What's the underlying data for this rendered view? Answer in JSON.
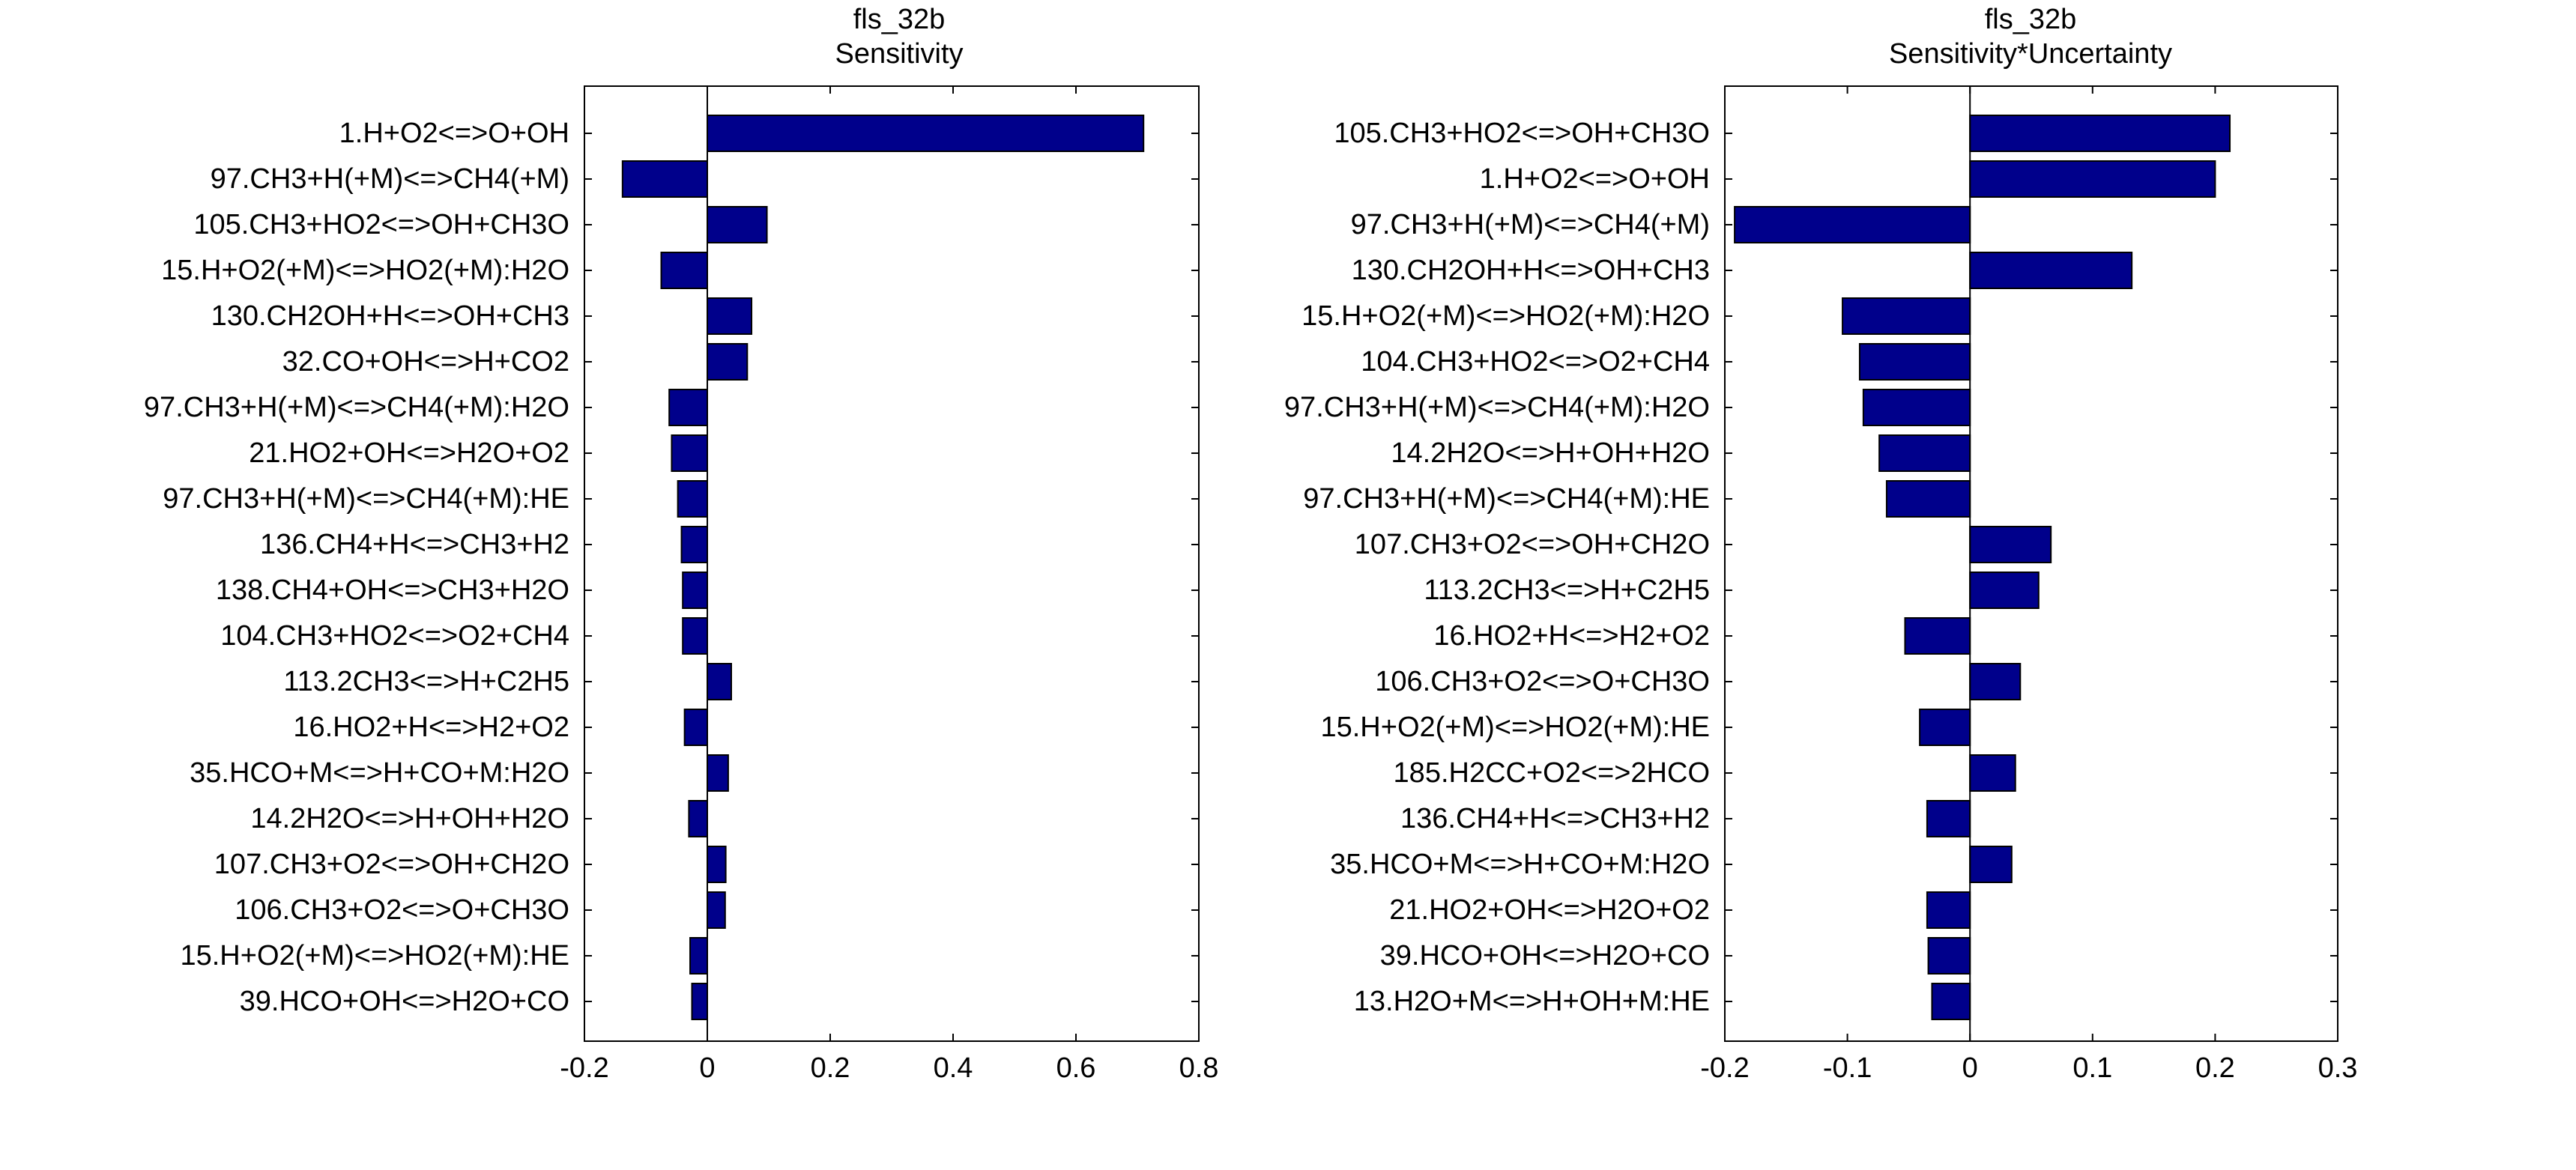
{
  "chart_data": [
    {
      "type": "bar",
      "orientation": "horizontal",
      "title": "fls_32b",
      "subtitle": "Sensitivity",
      "xlim": [
        -0.2,
        0.8
      ],
      "xticks": [
        -0.2,
        0,
        0.2,
        0.4,
        0.6,
        0.8
      ],
      "xtick_labels": [
        "-0.2",
        "0",
        "0.2",
        "0.4",
        "0.6",
        "0.8"
      ],
      "bar_color": "#00008B",
      "categories": [
        "1.H+O2<=>O+OH",
        "97.CH3+H(+M)<=>CH4(+M)",
        "105.CH3+HO2<=>OH+CH3O",
        "15.H+O2(+M)<=>HO2(+M):H2O",
        "130.CH2OH+H<=>OH+CH3",
        "32.CO+OH<=>H+CO2",
        "97.CH3+H(+M)<=>CH4(+M):H2O",
        "21.HO2+OH<=>H2O+O2",
        "97.CH3+H(+M)<=>CH4(+M):HE",
        "136.CH4+H<=>CH3+H2",
        "138.CH4+OH<=>CH3+H2O",
        "104.CH3+HO2<=>O2+CH4",
        "113.2CH3<=>H+C2H5",
        "16.HO2+H<=>H2+O2",
        "35.HCO+M<=>H+CO+M:H2O",
        "14.2H2O<=>H+OH+H2O",
        "107.CH3+O2<=>OH+CH2O",
        "106.CH3+O2<=>O+CH3O",
        "15.H+O2(+M)<=>HO2(+M):HE",
        "39.HCO+OH<=>H2O+CO"
      ],
      "values": [
        0.71,
        -0.138,
        0.097,
        -0.075,
        0.072,
        0.065,
        -0.062,
        -0.058,
        -0.048,
        -0.042,
        -0.04,
        -0.04,
        0.039,
        -0.037,
        0.034,
        -0.03,
        0.03,
        0.029,
        -0.028,
        -0.025
      ]
    },
    {
      "type": "bar",
      "orientation": "horizontal",
      "title": "fls_32b",
      "subtitle": "Sensitivity*Uncertainty",
      "xlim": [
        -0.2,
        0.3
      ],
      "xticks": [
        -0.2,
        -0.1,
        0,
        0.1,
        0.2,
        0.3
      ],
      "xtick_labels": [
        "-0.2",
        "-0.1",
        "0",
        "0.1",
        "0.2",
        "0.3"
      ],
      "bar_color": "#00008B",
      "categories": [
        "105.CH3+HO2<=>OH+CH3O",
        "1.H+O2<=>O+OH",
        "97.CH3+H(+M)<=>CH4(+M)",
        "130.CH2OH+H<=>OH+CH3",
        "15.H+O2(+M)<=>HO2(+M):H2O",
        "104.CH3+HO2<=>O2+CH4",
        "97.CH3+H(+M)<=>CH4(+M):H2O",
        "14.2H2O<=>H+OH+H2O",
        "97.CH3+H(+M)<=>CH4(+M):HE",
        "107.CH3+O2<=>OH+CH2O",
        "113.2CH3<=>H+C2H5",
        "16.HO2+H<=>H2+O2",
        "106.CH3+O2<=>O+CH3O",
        "15.H+O2(+M)<=>HO2(+M):HE",
        "185.H2CC+O2<=>2HCO",
        "136.CH4+H<=>CH3+H2",
        "35.HCO+M<=>H+CO+M:H2O",
        "21.HO2+OH<=>H2O+O2",
        "39.HCO+OH<=>H2O+CO",
        "13.H2O+M<=>H+OH+M:HE"
      ],
      "values": [
        0.212,
        0.2,
        -0.192,
        0.132,
        -0.104,
        -0.09,
        -0.087,
        -0.074,
        -0.068,
        0.066,
        0.056,
        -0.053,
        0.041,
        -0.041,
        0.037,
        -0.035,
        0.034,
        -0.035,
        -0.034,
        -0.031
      ]
    }
  ]
}
